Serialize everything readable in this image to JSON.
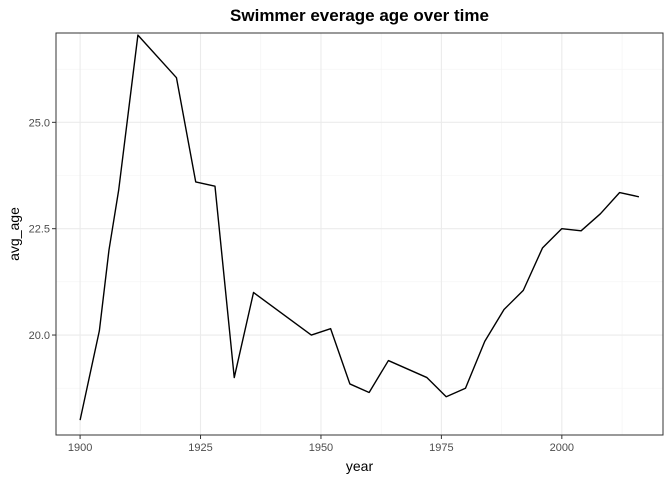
{
  "chart_data": {
    "type": "line",
    "title": "Swimmer everage age over time",
    "xlabel": "year",
    "ylabel": "avg_age",
    "xlim": [
      1895,
      2021
    ],
    "ylim": [
      17.65,
      27.1
    ],
    "x_ticks": [
      1900,
      1925,
      1950,
      1975,
      2000
    ],
    "x_tick_labels": [
      "1900",
      "1925",
      "1950",
      "1975",
      "2000"
    ],
    "y_ticks": [
      20.0,
      22.5,
      25.0
    ],
    "y_tick_labels": [
      "20.0",
      "22.5",
      "25.0"
    ],
    "x_minor_ticks": [
      1912.5,
      1937.5,
      1962.5,
      1987.5,
      2012.5
    ],
    "y_minor_ticks": [
      18.75,
      21.25,
      23.75,
      26.25
    ],
    "grid": true,
    "legend": "none",
    "series": [
      {
        "color": "#000000",
        "x": [
          1900,
          1904,
          1906,
          1908,
          1912,
          1920,
          1924,
          1928,
          1932,
          1936,
          1948,
          1952,
          1956,
          1960,
          1964,
          1968,
          1972,
          1976,
          1980,
          1984,
          1988,
          1992,
          1996,
          2000,
          2004,
          2008,
          2012,
          2016
        ],
        "y": [
          18.0,
          20.1,
          22.0,
          23.4,
          27.05,
          26.05,
          23.6,
          23.5,
          19.0,
          21.0,
          20.0,
          20.15,
          18.85,
          18.65,
          19.4,
          19.2,
          19.0,
          18.55,
          18.75,
          19.85,
          20.6,
          21.05,
          22.05,
          22.5,
          22.45,
          22.85,
          23.35,
          23.25
        ]
      }
    ]
  }
}
